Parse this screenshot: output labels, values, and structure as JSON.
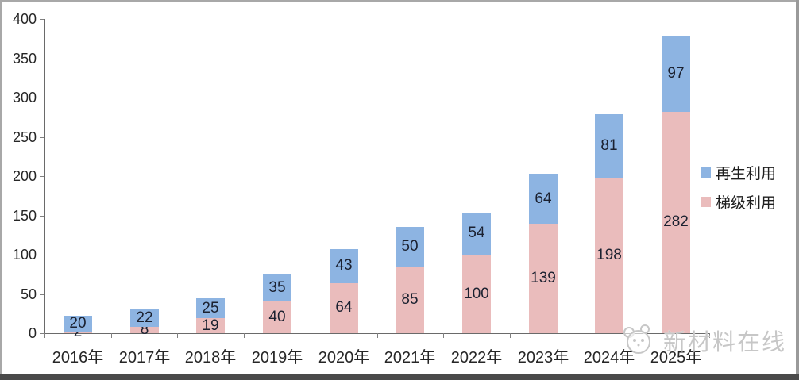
{
  "chart_data": {
    "type": "bar",
    "stacked": true,
    "title": "",
    "xlabel": "",
    "ylabel": "",
    "categories": [
      "2016年",
      "2017年",
      "2018年",
      "2019年",
      "2020年",
      "2021年",
      "2022年",
      "2023年",
      "2024年",
      "2025年"
    ],
    "series": [
      {
        "name": "梯级利用",
        "color": "#EABCBC",
        "values": [
          2,
          8,
          19,
          40,
          64,
          85,
          100,
          139,
          198,
          282
        ]
      },
      {
        "name": "再生利用",
        "color": "#8DB4E2",
        "values": [
          20,
          22,
          25,
          35,
          43,
          50,
          54,
          64,
          81,
          97
        ]
      }
    ],
    "ylim": [
      0,
      400
    ],
    "ytick_interval": 50,
    "ytick_labels": [
      "0",
      "50",
      "100",
      "150",
      "200",
      "250",
      "300",
      "350",
      "400"
    ],
    "grid": false,
    "legend_position": "right",
    "data_labels": "inside-center"
  },
  "legend": {
    "items": [
      {
        "label": "再生利用",
        "color": "#8DB4E2"
      },
      {
        "label": "梯级利用",
        "color": "#EABCBC"
      }
    ]
  },
  "watermark": {
    "text": "新材料在线"
  },
  "colors": {
    "bar_blue": "#8DB4E2",
    "bar_pink": "#EABCBC",
    "axis_line": "#6a6a6a",
    "tick_label": "#262626",
    "value_label": "#1b2130",
    "watermark": "#c7c7c7",
    "frame_border": "#a8a8a8",
    "frame_bottom": "#4a4a4a"
  }
}
